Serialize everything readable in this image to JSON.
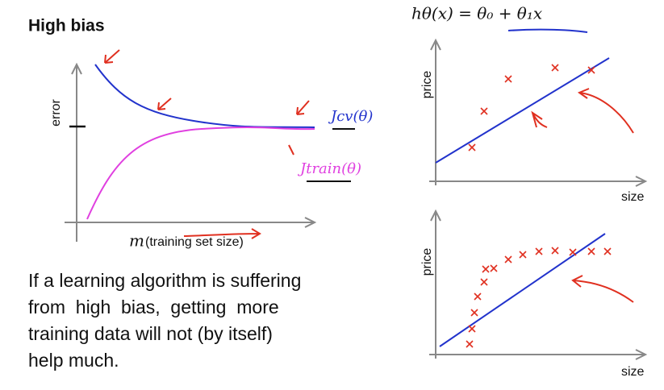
{
  "title": "High bias",
  "learning_curve": {
    "y_label": "error",
    "x_var": "m",
    "x_label": "(training set size)",
    "cv_label": "Jcv(θ)",
    "train_label": "Jtrain(θ)"
  },
  "formula": "hθ(x) = θ₀ + θ₁x",
  "top_plot": {
    "y_label": "price",
    "x_label": "size"
  },
  "bottom_plot": {
    "y_label": "price",
    "x_label": "size"
  },
  "body": {
    "lines": [
      "If a learning algorithm is suffering",
      "from  high  bias,  getting  more",
      "training data will not (by itself)",
      "help much."
    ]
  }
}
